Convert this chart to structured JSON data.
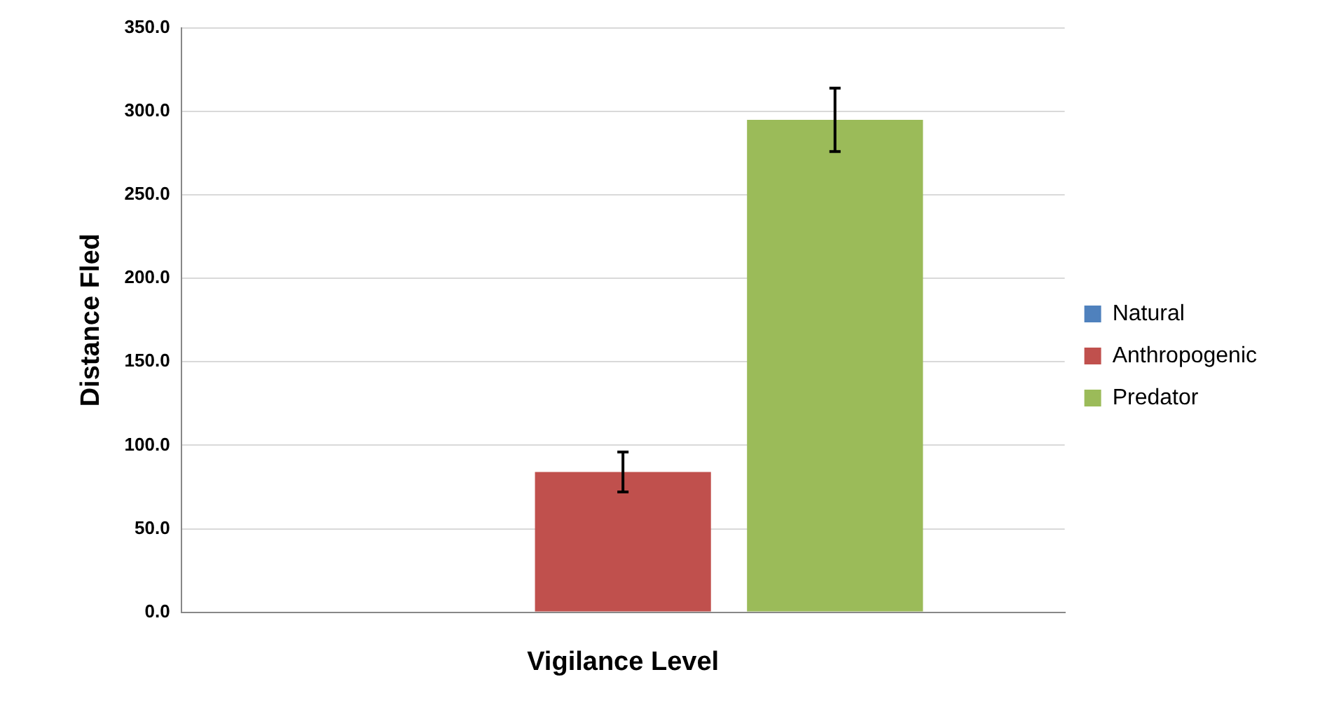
{
  "chart_data": {
    "type": "bar",
    "xlabel": "Vigilance Level",
    "ylabel": "Distance Fled",
    "categories": [
      null
    ],
    "series": [
      {
        "name": "Natural",
        "color": "#4f81bd",
        "values": [
          0
        ]
      },
      {
        "name": "Anthropogenic",
        "color": "#c0504d",
        "values": [
          84
        ],
        "errors": [
          12
        ]
      },
      {
        "name": "Predator",
        "color": "#9bbb59",
        "values": [
          295
        ],
        "errors": [
          19
        ]
      }
    ],
    "ylim": [
      0,
      350
    ],
    "yticks": [
      {
        "value": 0,
        "label": "0.0"
      },
      {
        "value": 50,
        "label": "50.0"
      },
      {
        "value": 100,
        "label": "100.0"
      },
      {
        "value": 150,
        "label": "150.0"
      },
      {
        "value": 200,
        "label": "200.0"
      },
      {
        "value": 250,
        "label": "250.0"
      },
      {
        "value": 300,
        "label": "300.0"
      },
      {
        "value": 350,
        "label": "350.0"
      }
    ],
    "grid": "y",
    "legend": "right"
  }
}
